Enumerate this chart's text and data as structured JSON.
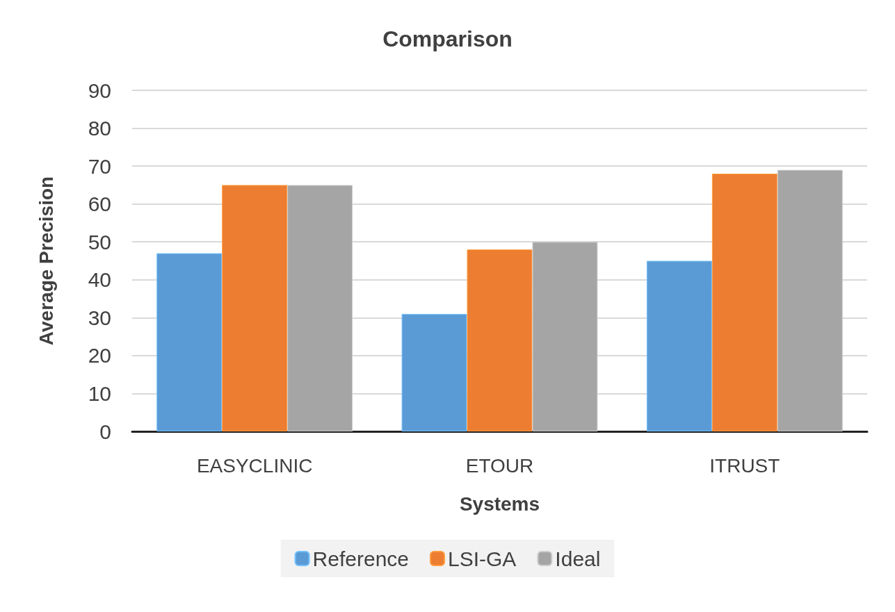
{
  "chart_data": {
    "type": "bar",
    "title": "Comparison",
    "xlabel": "Systems",
    "ylabel": "Average Precision",
    "categories": [
      "EASYCLINIC",
      "ETOUR",
      "ITRUST"
    ],
    "series": [
      {
        "name": "Reference",
        "color": "#5b9bd5",
        "values": [
          47,
          31,
          45
        ]
      },
      {
        "name": "LSI-GA",
        "color": "#ed7d31",
        "values": [
          65,
          48,
          68
        ]
      },
      {
        "name": "Ideal",
        "color": "#a5a5a5",
        "values": [
          65,
          50,
          69
        ]
      }
    ],
    "ylim": [
      0,
      90
    ],
    "yticks": [
      0,
      10,
      20,
      30,
      40,
      50,
      60,
      70,
      80,
      90
    ],
    "grid": "y",
    "legend": "bottom"
  }
}
